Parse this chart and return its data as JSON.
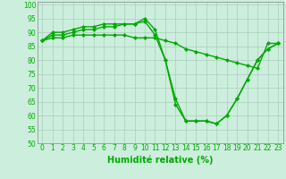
{
  "xlabel": "Humidité relative (%)",
  "background_color": "#cceedd",
  "grid_color": "#aaccbb",
  "line_color": "#00aa00",
  "xlim": [
    -0.5,
    23.5
  ],
  "ylim": [
    50,
    101
  ],
  "xticks": [
    0,
    1,
    2,
    3,
    4,
    5,
    6,
    7,
    8,
    9,
    10,
    11,
    12,
    13,
    14,
    15,
    16,
    17,
    18,
    19,
    20,
    21,
    22,
    23
  ],
  "yticks": [
    50,
    55,
    60,
    65,
    70,
    75,
    80,
    85,
    90,
    95,
    100
  ],
  "line1": [
    87,
    90,
    90,
    91,
    92,
    92,
    93,
    93,
    93,
    93,
    95,
    91,
    80,
    64,
    58,
    58,
    58,
    57,
    60,
    66,
    73,
    80,
    84,
    86
  ],
  "line2": [
    87,
    89,
    89,
    90,
    91,
    91,
    92,
    92,
    93,
    93,
    94,
    89,
    80,
    66,
    58,
    58,
    58,
    57,
    60,
    66,
    73,
    80,
    84,
    86
  ],
  "line3": [
    87,
    88,
    88,
    89,
    89,
    89,
    89,
    89,
    89,
    88,
    88,
    88,
    87,
    86,
    84,
    83,
    82,
    81,
    80,
    79,
    78,
    77,
    86,
    86
  ],
  "marker": "D",
  "markersize": 2.0,
  "linewidth": 1.0,
  "tick_fontsize": 5.5,
  "xlabel_fontsize": 7.0
}
